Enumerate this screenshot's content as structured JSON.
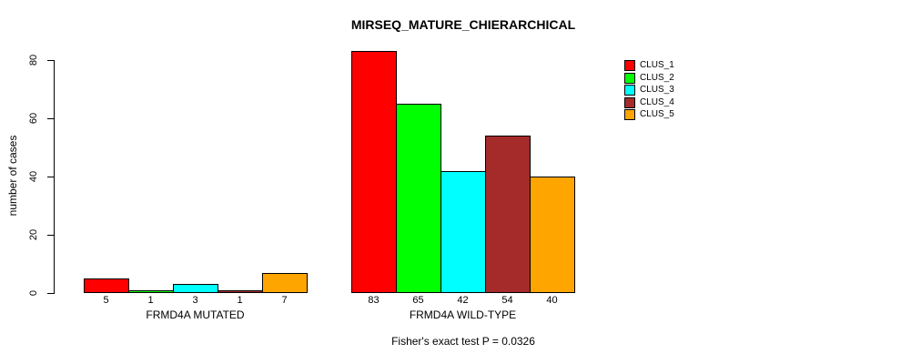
{
  "page": {
    "background": "#ffffff"
  },
  "chart_data": {
    "type": "bar",
    "title": "MIRSEQ_MATURE_CHIERARCHICAL",
    "ylabel": "number of cases",
    "xlabel": "",
    "ylim": [
      0,
      80
    ],
    "yticks": [
      0,
      20,
      40,
      60,
      80
    ],
    "grid": false,
    "legend_position": "top-right",
    "bar_value_labels_shown": true,
    "categories": [
      "FRMD4A MUTATED",
      "FRMD4A WILD-TYPE"
    ],
    "series": [
      {
        "name": "CLUS_1",
        "color": "#FF0000",
        "values": [
          5,
          83
        ]
      },
      {
        "name": "CLUS_2",
        "color": "#00FF00",
        "values": [
          1,
          65
        ]
      },
      {
        "name": "CLUS_3",
        "color": "#00FFFF",
        "values": [
          3,
          42
        ]
      },
      {
        "name": "CLUS_4",
        "color": "#A52A2A",
        "values": [
          1,
          54
        ]
      },
      {
        "name": "CLUS_5",
        "color": "#FFA500",
        "values": [
          7,
          40
        ]
      }
    ],
    "annotation": "Fisher's exact test P = 0.0326"
  }
}
